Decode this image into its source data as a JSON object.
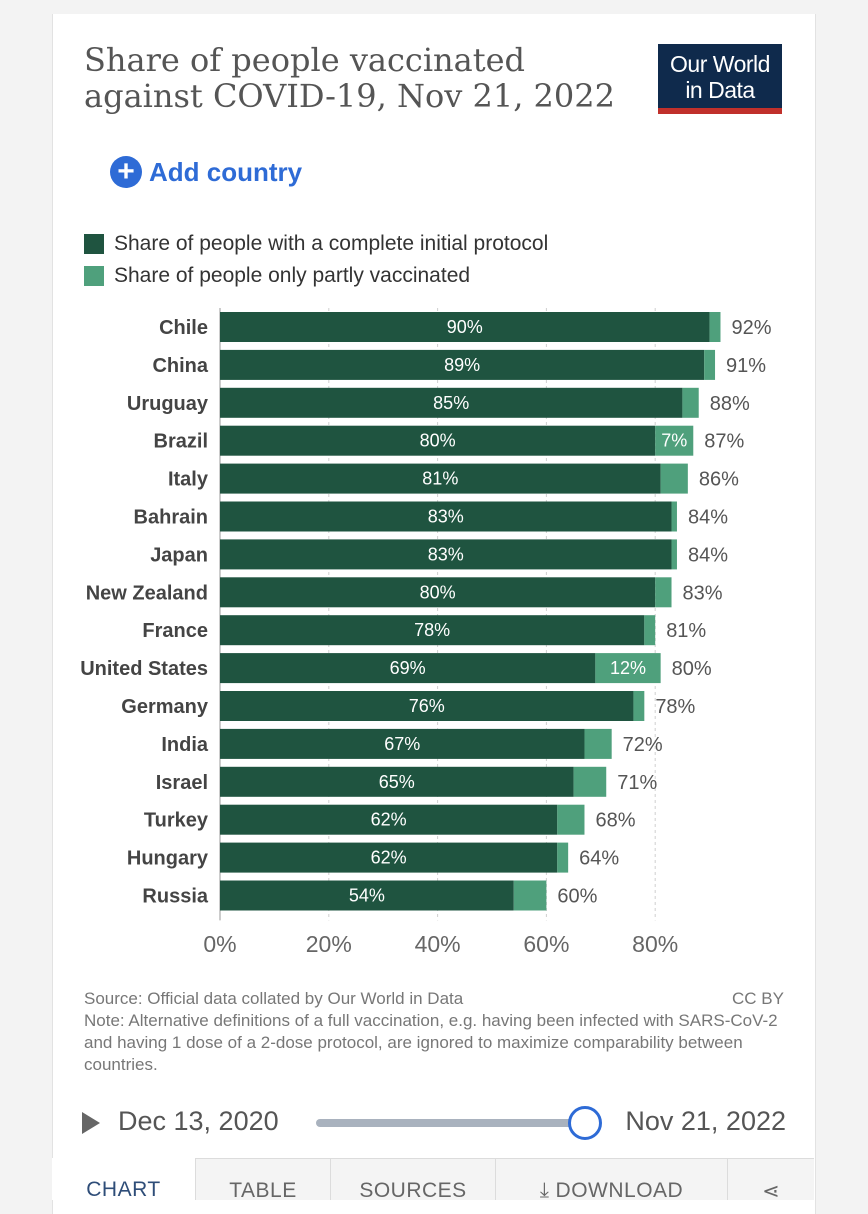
{
  "header": {
    "title": "Share of people vaccinated against COVID-19, Nov 21, 2022",
    "logo_line1": "Our World",
    "logo_line2": "in Data"
  },
  "controls": {
    "add_country_label": "Add country",
    "add_icon": "plus-circle-icon"
  },
  "legend": [
    {
      "label": "Share of people with a complete initial protocol",
      "color": "#1f5440"
    },
    {
      "label": "Share of people only partly vaccinated",
      "color": "#4fa07c"
    }
  ],
  "chart_data": {
    "type": "bar",
    "orientation": "horizontal",
    "stacked": true,
    "categories": [
      "Chile",
      "China",
      "Uruguay",
      "Brazil",
      "Italy",
      "Bahrain",
      "Japan",
      "New Zealand",
      "France",
      "United States",
      "Germany",
      "India",
      "Israel",
      "Turkey",
      "Hungary",
      "Russia"
    ],
    "series": [
      {
        "name": "Share of people with a complete initial protocol",
        "color": "#1f5440",
        "values": [
          90,
          89,
          85,
          80,
          81,
          83,
          83,
          80,
          78,
          69,
          76,
          67,
          65,
          62,
          62,
          54
        ],
        "labels": [
          "90%",
          "89%",
          "85%",
          "80%",
          "81%",
          "83%",
          "83%",
          "80%",
          "78%",
          "69%",
          "76%",
          "67%",
          "65%",
          "62%",
          "62%",
          "54%"
        ]
      },
      {
        "name": "Share of people only partly vaccinated",
        "color": "#4fa07c",
        "values": [
          2,
          2,
          3,
          7,
          5,
          1,
          1,
          3,
          2,
          12,
          2,
          5,
          6,
          5,
          2,
          6
        ],
        "labels": [
          "",
          "",
          "",
          "7%",
          "",
          "",
          "",
          "",
          "",
          "12%",
          "",
          "",
          "",
          "",
          "",
          ""
        ]
      }
    ],
    "totals": [
      "92%",
      "91%",
      "88%",
      "87%",
      "86%",
      "84%",
      "84%",
      "83%",
      "81%",
      "80%",
      "78%",
      "72%",
      "71%",
      "68%",
      "64%",
      "60%"
    ],
    "xticks": [
      0,
      20,
      40,
      60,
      80
    ],
    "xtick_labels": [
      "0%",
      "20%",
      "40%",
      "60%",
      "80%"
    ],
    "xlim": [
      0,
      92
    ],
    "grid": true
  },
  "footer": {
    "source": "Source: Official data collated by Our World in Data",
    "license": "CC BY",
    "note": "Note: Alternative definitions of a full vaccination, e.g. having been infected with SARS-CoV-2 and having 1 dose of a 2-dose protocol, are ignored to maximize comparability between countries."
  },
  "timeline": {
    "start_label": "Dec 13, 2020",
    "end_label": "Nov 21, 2022",
    "position": 1.0
  },
  "tabs": [
    {
      "label": "CHART",
      "active": true
    },
    {
      "label": "TABLE",
      "active": false
    },
    {
      "label": "SOURCES",
      "active": false
    },
    {
      "label": "DOWNLOAD",
      "active": false,
      "icon": "download-icon"
    },
    {
      "label": "",
      "active": false,
      "icon": "share-icon"
    }
  ]
}
